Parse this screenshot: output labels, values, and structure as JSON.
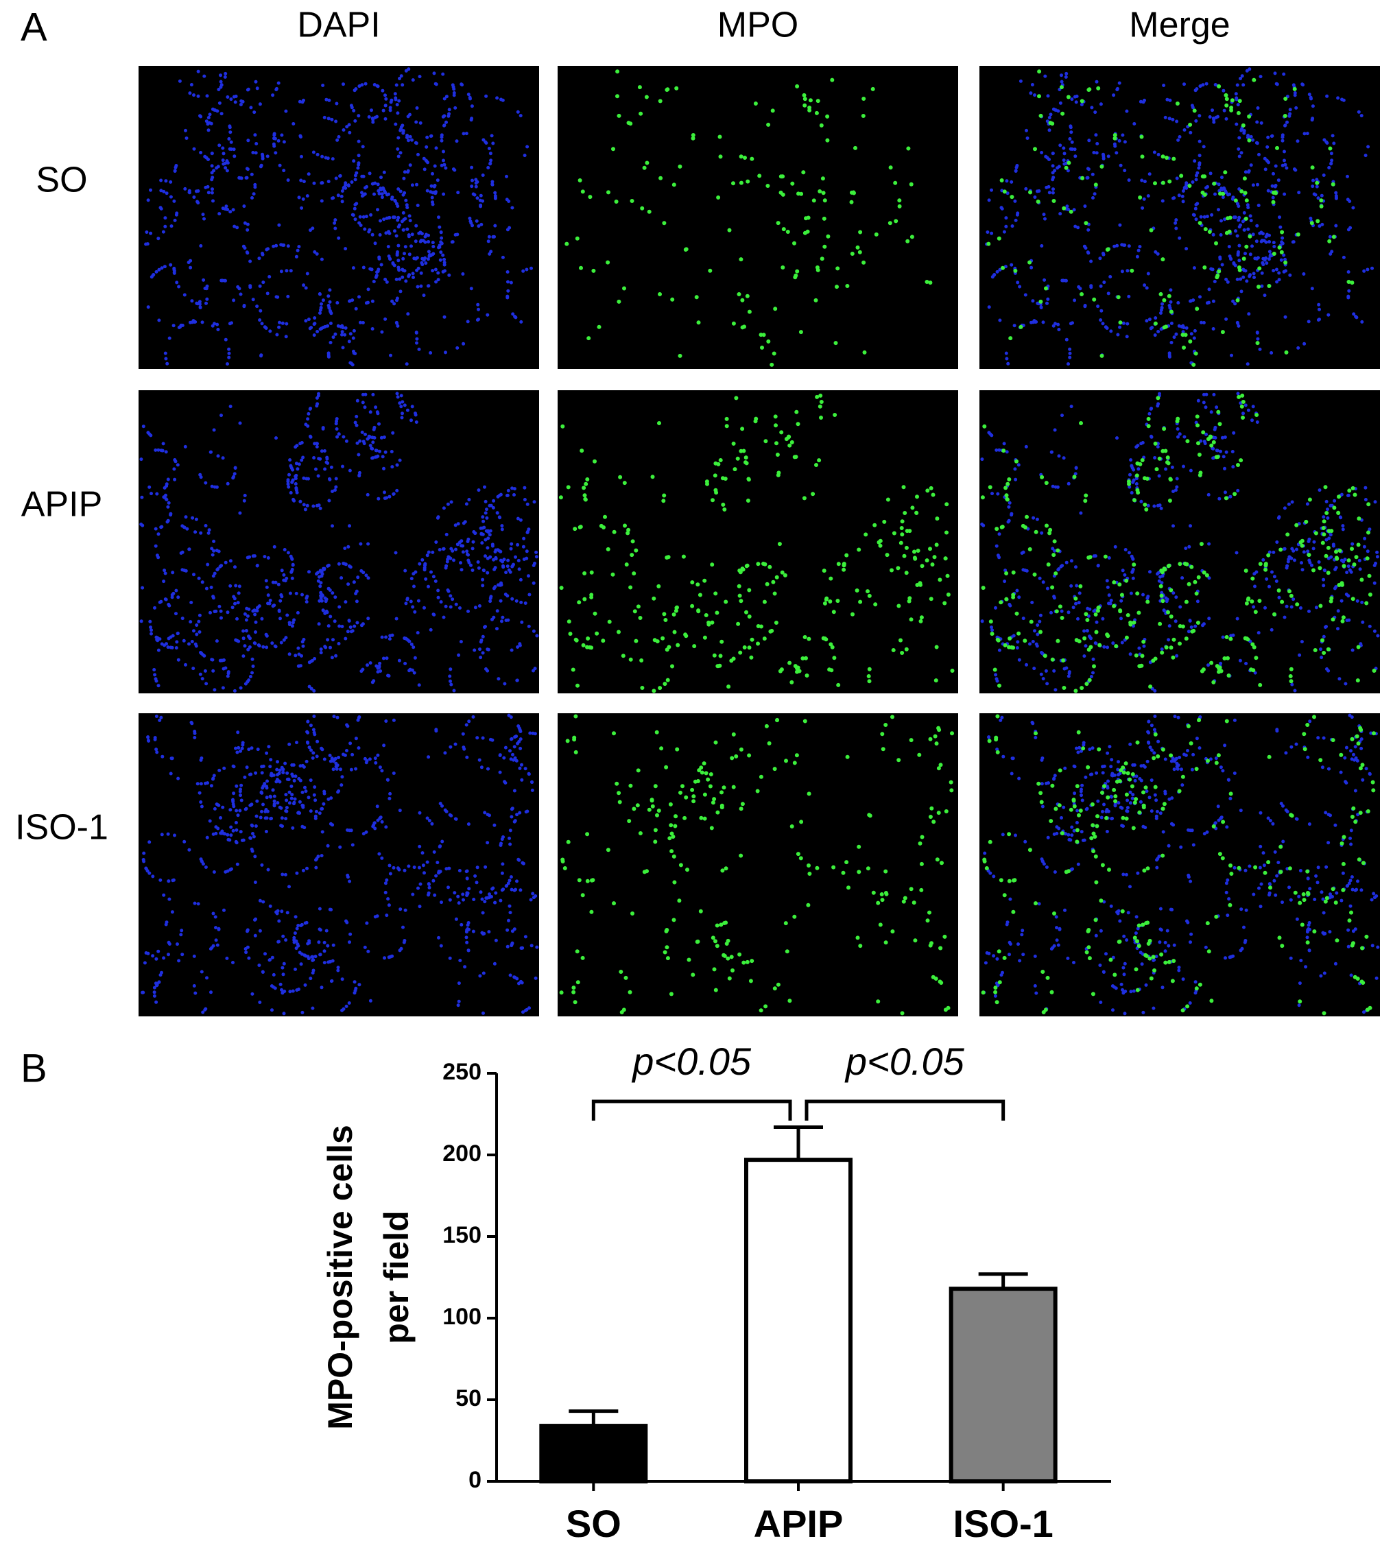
{
  "figure": {
    "panel_a": {
      "label": "A",
      "columns": [
        "DAPI",
        "MPO",
        "Merge"
      ],
      "rows": [
        "SO",
        "APIP",
        "ISO-1"
      ]
    },
    "panel_b": {
      "label": "B"
    }
  },
  "chart_data": {
    "type": "bar",
    "ylabel": [
      "MPO-positive cells",
      "per field"
    ],
    "categories": [
      "SO",
      "APIP",
      "ISO-1"
    ],
    "values": [
      34,
      197,
      118
    ],
    "errors": [
      9,
      20,
      9
    ],
    "colors": [
      "#000000",
      "#ffffff",
      "#808080"
    ],
    "ylim": [
      0,
      250
    ],
    "yticks": [
      0,
      50,
      100,
      150,
      200,
      250
    ],
    "annotations": [
      "p<0.05",
      "p<0.05"
    ]
  }
}
